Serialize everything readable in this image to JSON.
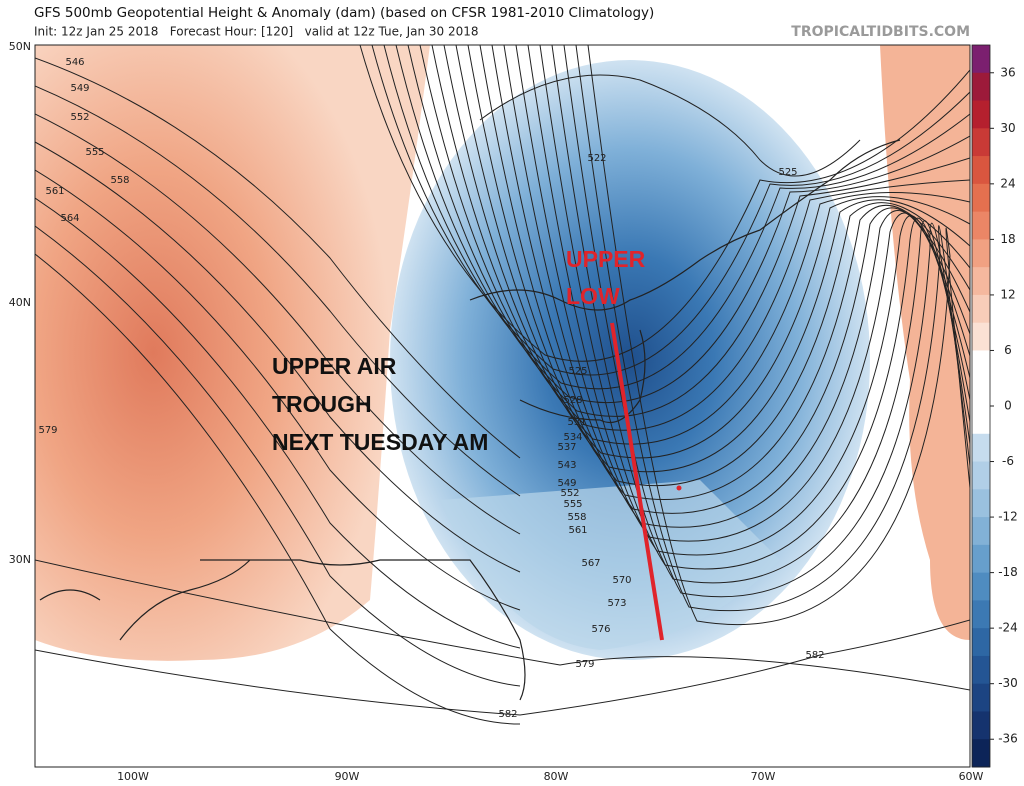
{
  "header": {
    "title": "GFS 500mb Geopotential Height & Anomaly (dam) (based on CFSR 1981-2010 Climatology)",
    "subtitle": "Init: 12z Jan 25 2018   Forecast Hour: [120]   valid at 12z Tue, Jan 30 2018",
    "source": "TROPICALTIDBITS.COM"
  },
  "map": {
    "lat_labels": [
      "50N",
      "40N",
      "30N"
    ],
    "lon_labels": [
      "100W",
      "90W",
      "80W",
      "70W",
      "60W"
    ],
    "contour_labels": [
      546,
      549,
      552,
      555,
      558,
      561,
      564,
      579,
      522,
      525,
      525,
      528,
      531,
      534,
      537,
      543,
      549,
      552,
      555,
      558,
      561,
      567,
      570,
      573,
      576,
      579,
      582,
      582
    ]
  },
  "annotations": {
    "trough": [
      "UPPER AIR",
      "TROUGH",
      "NEXT TUESDAY AM"
    ],
    "low": [
      "UPPER",
      "LOW"
    ]
  },
  "colorbar": {
    "ticks": [
      36,
      30,
      24,
      18,
      12,
      6,
      0,
      -6,
      -12,
      -18,
      -24,
      -30,
      -36
    ]
  }
}
